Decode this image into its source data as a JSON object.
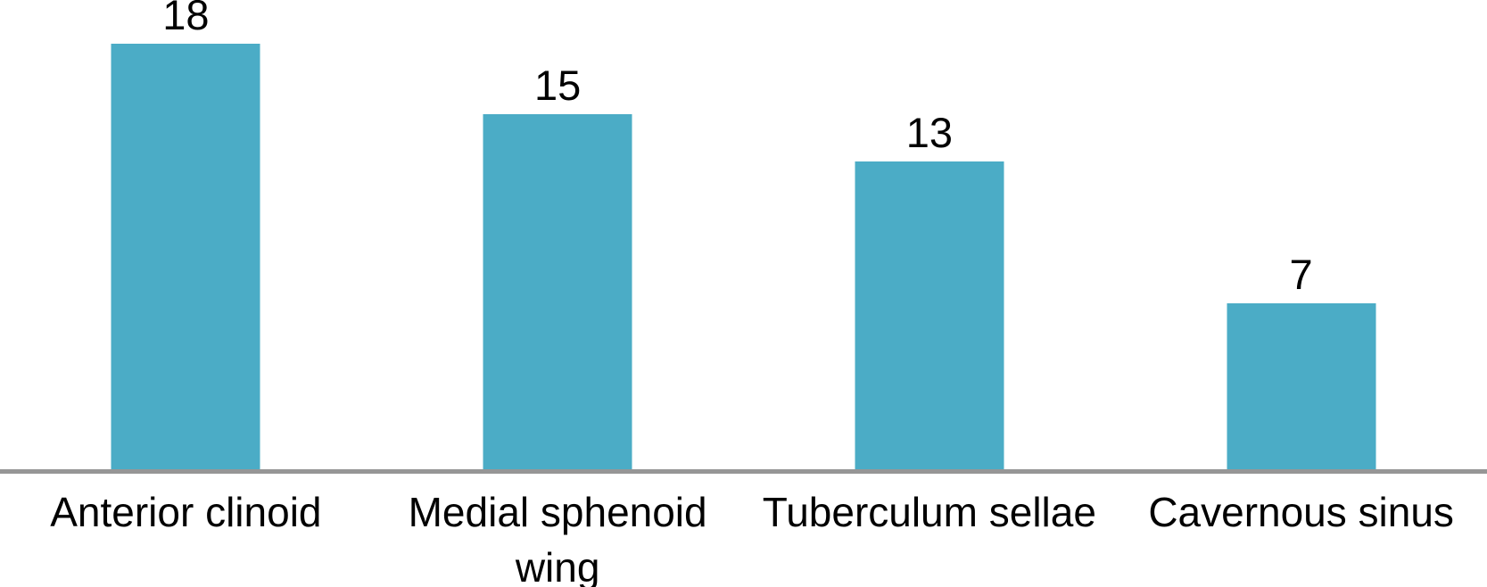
{
  "chart_data": {
    "type": "bar",
    "title": "",
    "xlabel": "",
    "ylabel": "",
    "categories": [
      "Anterior clinoid",
      "Medial sphenoid wing",
      "Tuberculum sellae",
      "Cavernous sinus"
    ],
    "values": [
      18,
      15,
      13,
      7
    ],
    "data_labels": [
      "18",
      "15",
      "13",
      "7"
    ],
    "ylim": [
      0,
      20
    ],
    "grid": false,
    "legend": false,
    "bar_color": "#4BACC6",
    "baseline_color": "#969696",
    "label_color": "#000000",
    "background_color": "#ffffff"
  }
}
